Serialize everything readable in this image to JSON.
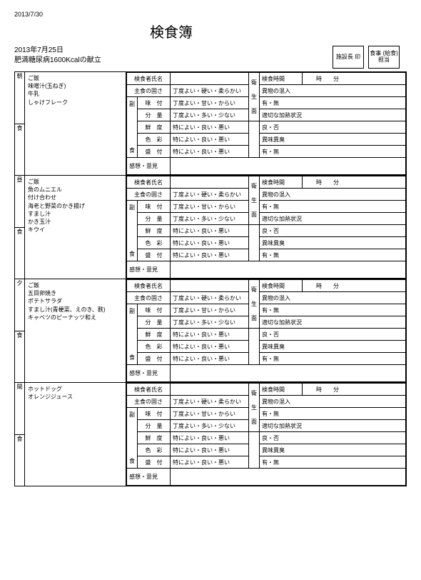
{
  "document": {
    "print_date": "2013/7/30",
    "title": "検食簿",
    "date_line": "2013年7月25日",
    "menu_line": "肥満糖尿病1600Kcalの献立",
    "stamps": [
      {
        "label": "施設長\n印"
      },
      {
        "label": "食事\n(給食)\n担当"
      }
    ]
  },
  "eval_labels": {
    "inspector": "検食者氏名",
    "inspect_time": "検食時間",
    "time_h": "時",
    "time_m": "分",
    "main_firm": "主食の固さ",
    "main_firm_v": "丁度よい・硬い・柔らかい",
    "taste": "味　付",
    "taste_v": "丁度よい・甘い・からい",
    "amount": "分　量",
    "amount_v": "丁度よい・多い・少ない",
    "fresh": "鮮　度",
    "fresh_v": "特によい・良い・悪い",
    "color": "色　彩",
    "color_v": "特によい・良い・悪い",
    "serve": "盛　付",
    "serve_v": "特によい・良い・悪い",
    "foreign": "異物の混入",
    "foreign_v": "有・無",
    "heating": "適切な加熱状況",
    "heating_v": "良・否",
    "odor": "異味異臭",
    "odor_v": "有・無",
    "side_l": "副",
    "side_r": "食",
    "hyg_l": "衛",
    "hyg_r": "生",
    "hyg_b": "面",
    "notes": "感想・意見"
  },
  "meals": [
    {
      "label_top": "朝",
      "label_bot": "食",
      "items": [
        "ご飯",
        "味噌汁(玉ねぎ)",
        "牛乳",
        "しゃけフレーク"
      ]
    },
    {
      "label_top": "昼",
      "label_bot": "食",
      "items": [
        "ご飯",
        "魚のムニエル",
        "付け合わせ",
        "海老と野菜のかき揚げ",
        "すまし汁",
        "かき玉汁",
        "キウイ"
      ]
    },
    {
      "label_top": "夕",
      "label_bot": "食",
      "items": [
        "ご飯",
        "五目卵焼き",
        "ポテトサラダ",
        "すまし汁(青梗菜、えのき、麩)",
        "キャベツのピーナッツ和え"
      ]
    },
    {
      "label_top": "間",
      "label_bot": "食",
      "items": [
        "ホットドッグ",
        "オレンジジュース"
      ]
    }
  ]
}
